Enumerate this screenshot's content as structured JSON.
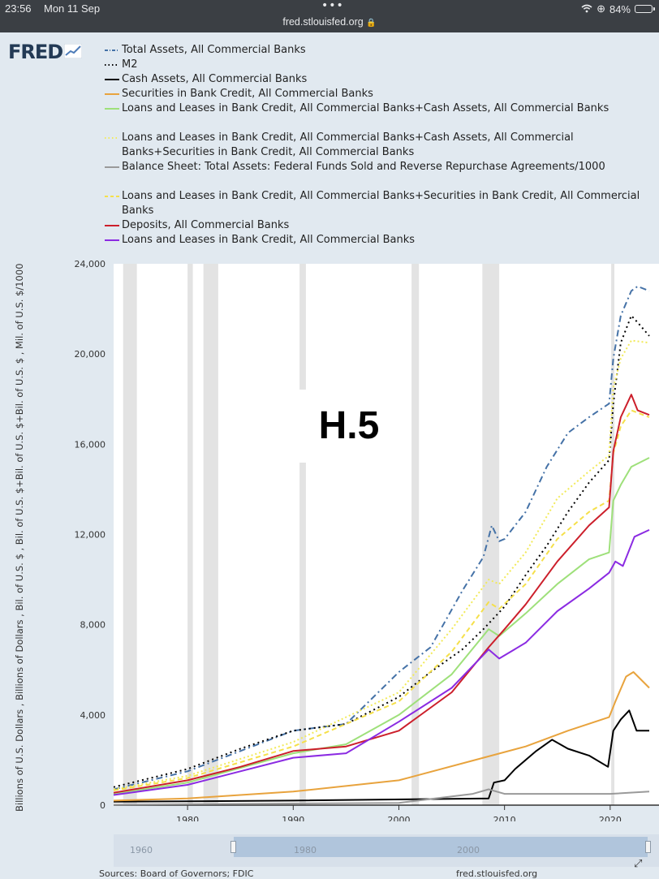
{
  "status_bar": {
    "time": "23:56",
    "date": "Mon 11 Sep",
    "url": "fred.stlouisfed.org",
    "battery": "84%"
  },
  "logo": {
    "text": "FRED"
  },
  "legend": [
    {
      "label": "Total Assets, All Commercial Banks",
      "color": "#4572a7",
      "style": "dashdot"
    },
    {
      "label": "M2",
      "color": "#000000",
      "style": "dotted"
    },
    {
      "label": "Cash Assets, All Commercial Banks",
      "color": "#000000",
      "style": "solid"
    },
    {
      "label": "Securities in Bank Credit, All Commercial Banks",
      "color": "#e8a33d",
      "style": "solid"
    },
    {
      "label": "Loans and Leases in Bank Credit, All Commercial Banks+Cash Assets, All Commercial Banks",
      "color": "#9ee07a",
      "style": "solid"
    },
    {
      "label": "Loans and Leases in Bank Credit, All Commercial Banks+Cash Assets, All Commercial Banks+Securities in Bank Credit, All Commercial Banks",
      "color": "#f2ea5a",
      "style": "dotted"
    },
    {
      "label": "Balance Sheet: Total Assets: Federal Funds Sold and Reverse Repurchase Agreements/1000",
      "color": "#9a9a9a",
      "style": "solid"
    },
    {
      "label": "Loans and Leases in Bank Credit, All Commercial Banks+Securities in Bank Credit, All Commercial Banks",
      "color": "#f5e04a",
      "style": "dashed"
    },
    {
      "label": "Deposits, All Commercial Banks",
      "color": "#cc1f2b",
      "style": "solid"
    },
    {
      "label": "Loans and Leases in Bank Credit, All Commercial Banks",
      "color": "#8b2be2",
      "style": "solid"
    }
  ],
  "overlay_text": "H.5",
  "y_axis_label": "Billions of U.S. Dollars , Billions of Dollars , Bil. of U.S. $ , Bil. of U.S. $+Bil. of U.S. $+Bil. of U.S. $ , Mil. of U.S. $/1000",
  "navigator": {
    "ticks": [
      "1960",
      "1980",
      "2000"
    ]
  },
  "footer": {
    "source": "Sources: Board of Governors; FDIC",
    "url": "fred.stlouisfed.org"
  },
  "chart_data": {
    "type": "line",
    "ylim": [
      0,
      24000
    ],
    "xlim": [
      1973,
      2023.7
    ],
    "y_ticks": [
      "0",
      "4,000",
      "8,000",
      "12,000",
      "16,000",
      "20,000",
      "24,000"
    ],
    "x_ticks": [
      "1980",
      "1990",
      "2000",
      "2010",
      "2020"
    ],
    "grid": false,
    "legend_position": "top",
    "recessions": [
      [
        1973.9,
        1975.2
      ],
      [
        1980.0,
        1980.5
      ],
      [
        1981.5,
        1982.9
      ],
      [
        1990.6,
        1991.2
      ],
      [
        2001.2,
        2001.9
      ],
      [
        2007.9,
        2009.5
      ],
      [
        2020.1,
        2020.4
      ]
    ],
    "series": [
      {
        "name": "Total Assets, All Commercial Banks",
        "color": "#4572a7",
        "dash": "8,4,2,4",
        "x": [
          1973,
          1980,
          1985,
          1990,
          1995,
          2000,
          2003,
          2006,
          2008,
          2008.8,
          2009.5,
          2010,
          2012,
          2014,
          2016,
          2018,
          2019.9,
          2020.3,
          2021,
          2022,
          2022.6,
          2023.7
        ],
        "y": [
          700,
          1500,
          2400,
          3300,
          3600,
          5900,
          7000,
          9500,
          11000,
          12400,
          11700,
          11800,
          13000,
          15000,
          16500,
          17200,
          17800,
          19800,
          21700,
          22800,
          23000,
          22800
        ]
      },
      {
        "name": "M2",
        "color": "#000000",
        "dash": "2,4",
        "x": [
          1973,
          1980,
          1985,
          1990,
          1995,
          2000,
          2003,
          2006,
          2008,
          2010,
          2012,
          2014,
          2016,
          2018,
          2019.9,
          2020.3,
          2021,
          2022,
          2022.6,
          2023.7
        ],
        "y": [
          800,
          1600,
          2500,
          3300,
          3600,
          4800,
          5900,
          6900,
          7800,
          8800,
          10200,
          11500,
          13000,
          14300,
          15300,
          17800,
          20500,
          21700,
          21400,
          20800
        ]
      },
      {
        "name": "Cash Assets, All Commercial Banks",
        "color": "#000000",
        "dash": "",
        "x": [
          1973,
          1990,
          2008.5,
          2009,
          2010,
          2011,
          2013,
          2014.5,
          2016,
          2018,
          2019.8,
          2020.3,
          2021,
          2021.8,
          2022.5,
          2023.7
        ],
        "y": [
          150,
          200,
          300,
          1000,
          1100,
          1600,
          2400,
          2900,
          2500,
          2200,
          1700,
          3300,
          3800,
          4200,
          3300,
          3300
        ]
      },
      {
        "name": "Securities in Bank Credit, All Commercial Banks",
        "color": "#e8a33d",
        "dash": "",
        "x": [
          1973,
          1980,
          1990,
          2000,
          2008,
          2012,
          2016,
          2019.9,
          2020.5,
          2021.5,
          2022.2,
          2023.7
        ],
        "y": [
          200,
          300,
          600,
          1100,
          2100,
          2600,
          3300,
          3900,
          4600,
          5700,
          5900,
          5200
        ]
      },
      {
        "name": "Loans and Leases in Bank Credit, All Commercial Banks+Cash Assets, All Commercial Banks",
        "color": "#9ee07a",
        "dash": "",
        "x": [
          1973,
          1980,
          1990,
          1995,
          2000,
          2005,
          2008.5,
          2009.5,
          2012,
          2015,
          2018,
          2019.9,
          2020.3,
          2021,
          2022,
          2023.7
        ],
        "y": [
          500,
          1000,
          2300,
          2700,
          4000,
          5800,
          7800,
          7500,
          8500,
          9800,
          10900,
          11200,
          13500,
          14200,
          15000,
          15400
        ]
      },
      {
        "name": "Loans and Leases in Bank Credit, All Commercial Banks+Cash Assets, All Commercial Banks+Securities in Bank Credit, All Commercial Banks",
        "color": "#f2ea5a",
        "dash": "2,3",
        "x": [
          1973,
          1980,
          1990,
          2000,
          2005,
          2008.5,
          2009.5,
          2012,
          2015,
          2018,
          2019.9,
          2020.3,
          2021,
          2022,
          2023.7
        ],
        "y": [
          700,
          1300,
          2800,
          5000,
          7800,
          10000,
          9800,
          11200,
          13600,
          14800,
          15500,
          18500,
          19800,
          20600,
          20500
        ]
      },
      {
        "name": "Balance Sheet: Total Assets: Federal Funds Sold and Reverse Repurchase Agreements/1000",
        "color": "#9a9a9a",
        "dash": "",
        "x": [
          1973,
          2000,
          2007,
          2008.5,
          2010,
          2015,
          2020,
          2023.7
        ],
        "y": [
          20,
          100,
          500,
          700,
          500,
          500,
          500,
          600
        ]
      },
      {
        "name": "Loans and Leases in Bank Credit, All Commercial Banks+Securities in Bank Credit, All Commercial Banks",
        "color": "#f5e04a",
        "dash": "6,4",
        "x": [
          1973,
          1980,
          1990,
          2000,
          2005,
          2008.5,
          2009.5,
          2012,
          2015,
          2018,
          2019.9,
          2020.3,
          2021,
          2022,
          2023.7
        ],
        "y": [
          650,
          1200,
          2600,
          4600,
          6800,
          9000,
          8700,
          9800,
          11800,
          13000,
          13500,
          15600,
          16800,
          17500,
          17200
        ]
      },
      {
        "name": "Deposits, All Commercial Banks",
        "color": "#cc1f2b",
        "dash": "",
        "x": [
          1973,
          1980,
          1985,
          1990,
          1995,
          2000,
          2005,
          2008.5,
          2010,
          2012,
          2015,
          2018,
          2019.9,
          2020.3,
          2021,
          2022,
          2022.6,
          2023.7
        ],
        "y": [
          550,
          1100,
          1700,
          2400,
          2600,
          3300,
          5000,
          7000,
          7800,
          8900,
          10800,
          12400,
          13200,
          15700,
          17200,
          18200,
          17500,
          17300
        ]
      },
      {
        "name": "Loans and Leases in Bank Credit, All Commercial Banks",
        "color": "#8b2be2",
        "dash": "",
        "x": [
          1973,
          1980,
          1985,
          1990,
          1995,
          2000,
          2005,
          2008.5,
          2009.5,
          2012,
          2015,
          2018,
          2019.9,
          2020.5,
          2021.2,
          2022.3,
          2023.7
        ],
        "y": [
          450,
          900,
          1500,
          2100,
          2300,
          3700,
          5200,
          6900,
          6500,
          7200,
          8600,
          9600,
          10300,
          10800,
          10600,
          11900,
          12200
        ]
      }
    ]
  }
}
